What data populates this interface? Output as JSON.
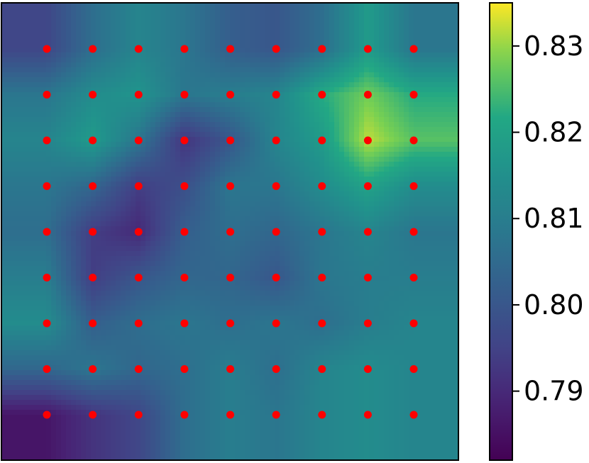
{
  "chart_data": {
    "type": "heatmap",
    "title": "",
    "xlabel": "",
    "ylabel": "",
    "colormap": "viridis",
    "color_range": [
      0.782,
      0.835
    ],
    "colorbar": {
      "ticks": [
        0.79,
        0.8,
        0.81,
        0.82,
        0.83
      ],
      "tick_labels": [
        "0.79",
        "0.80",
        "0.81",
        "0.82",
        "0.83"
      ]
    },
    "sample_points": {
      "color": "#ff0000",
      "rows": 9,
      "cols": 9
    },
    "grid": [
      [
        0.796,
        0.806,
        0.812,
        0.808,
        0.802,
        0.8,
        0.806,
        0.818,
        0.808
      ],
      [
        0.808,
        0.814,
        0.816,
        0.808,
        0.81,
        0.812,
        0.822,
        0.828,
        0.822
      ],
      [
        0.812,
        0.818,
        0.808,
        0.792,
        0.8,
        0.812,
        0.818,
        0.832,
        0.826
      ],
      [
        0.808,
        0.804,
        0.794,
        0.798,
        0.808,
        0.808,
        0.814,
        0.82,
        0.814
      ],
      [
        0.806,
        0.794,
        0.79,
        0.802,
        0.806,
        0.804,
        0.808,
        0.812,
        0.808
      ],
      [
        0.81,
        0.794,
        0.8,
        0.804,
        0.804,
        0.8,
        0.808,
        0.81,
        0.81
      ],
      [
        0.814,
        0.802,
        0.806,
        0.808,
        0.806,
        0.808,
        0.806,
        0.81,
        0.812
      ],
      [
        0.804,
        0.808,
        0.804,
        0.806,
        0.81,
        0.806,
        0.812,
        0.814,
        0.812
      ],
      [
        0.786,
        0.792,
        0.796,
        0.806,
        0.81,
        0.808,
        0.812,
        0.814,
        0.812
      ]
    ]
  }
}
